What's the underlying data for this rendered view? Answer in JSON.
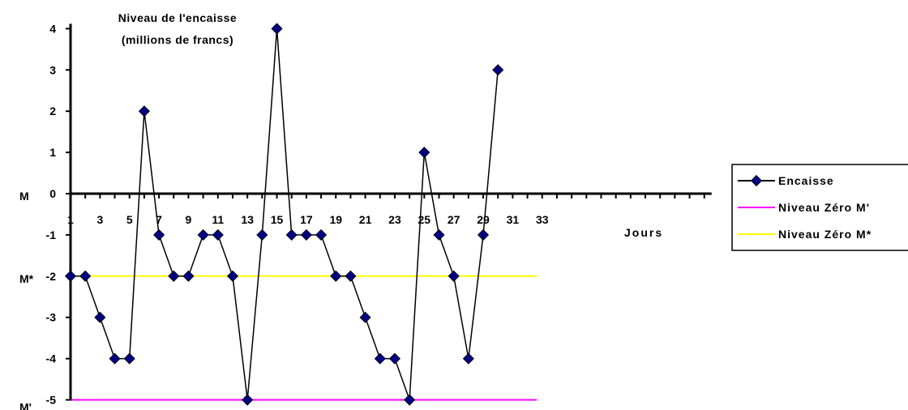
{
  "chart_data": {
    "type": "line",
    "title_lines": [
      "Niveau de l'encaisse",
      "(millions de francs)"
    ],
    "xlabel": "Jours",
    "ylabel": "",
    "x": [
      1,
      2,
      3,
      4,
      5,
      6,
      7,
      8,
      9,
      10,
      11,
      12,
      13,
      14,
      15,
      16,
      17,
      18,
      19,
      20,
      21,
      22,
      23,
      24,
      25,
      26,
      27,
      28,
      29,
      30
    ],
    "xlim": [
      1,
      44
    ],
    "ylim": [
      -5,
      4
    ],
    "y_ticks": [
      "4",
      "3",
      "2",
      "1",
      "0",
      "-1",
      "-2",
      "-3",
      "-4",
      "-5"
    ],
    "x_tick_labels": [
      "1",
      "3",
      "5",
      "7",
      "9",
      "11",
      "13",
      "15",
      "17",
      "19",
      "21",
      "23",
      "25",
      "27",
      "29",
      "31",
      "33"
    ],
    "left_markers": [
      {
        "label": "M",
        "y": 0
      },
      {
        "label": "M*",
        "y": -2
      },
      {
        "label": "M'",
        "y": -5
      }
    ],
    "series": [
      {
        "name": "Encaisse",
        "color": "#000080",
        "marker": "diamond",
        "values": [
          -2,
          -2,
          -3,
          -4,
          -4,
          2,
          -1,
          -2,
          -2,
          -1,
          -1,
          -2,
          -5,
          -1,
          4,
          -1,
          -1,
          -1,
          -2,
          -2,
          -3,
          -4,
          -4,
          -5,
          1,
          -1,
          -2,
          -4,
          -1,
          3
        ]
      },
      {
        "name": "Niveau Zéro M'",
        "color": "#FF00FF",
        "x_range": [
          1,
          33
        ],
        "y": -5
      },
      {
        "name": "Niveau Zéro M*",
        "color": "#FFFF00",
        "x_range": [
          1,
          33
        ],
        "y": -2
      }
    ],
    "grid": false,
    "legend_position": "right"
  }
}
